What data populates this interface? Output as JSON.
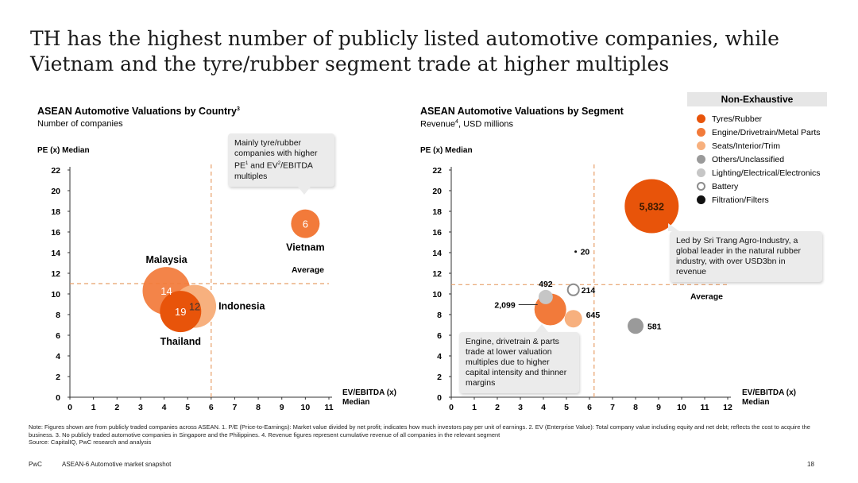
{
  "page": {
    "title": "TH has the highest number of publicly listed automotive companies, while Vietnam and the tyre/rubber segment trade at higher multiples",
    "note": "Note: Figures shown are from publicly traded companies across ASEAN. 1. P/E (Price-to-Earnings): Market value divided by net profit; indicates how much investors pay per unit of earnings. 2. EV (Enterprise Value): Total company value including equity and net debt; reflects the cost to acquire the business. 3. No publicly traded automotive companies in Singapore and the Philippines. 4. Revenue figures represent cumulative revenue of all companies in the relevant segment",
    "source": "Source: CapitalIQ, PwC research and analysis",
    "footer_brand": "PwC",
    "footer_title": "ASEAN-6 Automotive market snapshot",
    "page_number": "18"
  },
  "left": {
    "title": "ASEAN Automotive Valuations by Country",
    "title_sup": "3",
    "subtitle": "Number of companies",
    "callout": {
      "t1": "Mainly tyre/rubber companies with higher PE",
      "s1": "1",
      "t2": " and EV",
      "s2": "2",
      "t3": "/EBITDA multiples"
    }
  },
  "right": {
    "title": "ASEAN Automotive Valuations by Segment",
    "subtitle_pre": "Revenue",
    "subtitle_sup": "4",
    "subtitle_post": ", USD millions",
    "callout_top": "Led by Sri Trang Agro-Industry, a global leader in the natural rubber industry, with over USD3bn in revenue",
    "callout_bottom": "Engine, drivetrain & parts trade at lower valuation multiples due to higher capital intensity and thinner margins"
  },
  "legend": {
    "header": "Non-Exhaustive",
    "items": [
      {
        "label": "Tyres/Rubber",
        "color": "#e8540a",
        "hollow": false
      },
      {
        "label": "Engine/Drivetrain/Metal Parts",
        "color": "#f27a3a",
        "hollow": false
      },
      {
        "label": "Seats/Interior/Trim",
        "color": "#f7b07e",
        "hollow": false
      },
      {
        "label": "Others/Unclassified",
        "color": "#9a9a9a",
        "hollow": false
      },
      {
        "label": "Lighting/Electrical/Electronics",
        "color": "#c6c6c6",
        "hollow": false
      },
      {
        "label": "Battery",
        "color": "#8c8c8c",
        "hollow": true
      },
      {
        "label": "Filtration/Filters",
        "color": "#111111",
        "hollow": false
      }
    ]
  },
  "chart_data": [
    {
      "type": "scatter",
      "title": "ASEAN Automotive Valuations by Country",
      "subtitle": "Number of companies",
      "ylabel": "PE (x) Median",
      "xlabel": "EV/EBITDA (x) Median",
      "xlim": [
        0,
        11
      ],
      "ylim": [
        0,
        22
      ],
      "xticks": [
        "0",
        "1",
        "2",
        "3",
        "4",
        "5",
        "6",
        "7",
        "8",
        "9",
        "10",
        "11"
      ],
      "yticks": [
        "0",
        "2",
        "4",
        "6",
        "8",
        "10",
        "12",
        "14",
        "16",
        "18",
        "20",
        "22"
      ],
      "median_x": 6,
      "median_y": 11,
      "median_label": "Average",
      "points": [
        {
          "name": "Thailand",
          "x": 4.7,
          "y": 8.3,
          "value": 19,
          "label": "19",
          "color": "#e8540a"
        },
        {
          "name": "Malaysia",
          "x": 4.1,
          "y": 10.3,
          "value": 14,
          "label": "14",
          "color": "#f27a3a"
        },
        {
          "name": "Indonesia",
          "x": 5.3,
          "y": 8.8,
          "value": 12,
          "label": "12",
          "color": "#f7b07e"
        },
        {
          "name": "Vietnam",
          "x": 10,
          "y": 16.8,
          "value": 6,
          "label": "6",
          "color": "#f27a3a"
        }
      ]
    },
    {
      "type": "scatter",
      "title": "ASEAN Automotive Valuations by Segment",
      "subtitle": "Revenue, USD millions",
      "ylabel": "PE (x) Median",
      "xlabel": "EV/EBITDA (x) Median",
      "xlim": [
        0,
        12
      ],
      "ylim": [
        0,
        22
      ],
      "xticks": [
        "0",
        "1",
        "2",
        "3",
        "4",
        "5",
        "6",
        "7",
        "8",
        "9",
        "10",
        "11",
        "12"
      ],
      "yticks": [
        "0",
        "2",
        "4",
        "6",
        "8",
        "10",
        "12",
        "14",
        "16",
        "18",
        "20",
        "22"
      ],
      "median_x": 6.2,
      "median_y": 10.9,
      "median_label": "Average",
      "points": [
        {
          "name": "Tyres/Rubber",
          "x": 8.7,
          "y": 18.5,
          "value": 5832,
          "label": "5,832",
          "color": "#e8540a"
        },
        {
          "name": "Engine/Drivetrain/Metal Parts",
          "x": 4.3,
          "y": 8.5,
          "value": 2099,
          "label": "2,099",
          "color": "#f27a3a"
        },
        {
          "name": "Seats/Interior/Trim",
          "x": 5.3,
          "y": 7.6,
          "value": 645,
          "label": "645",
          "color": "#f7b07e"
        },
        {
          "name": "Others/Unclassified",
          "x": 8,
          "y": 6.9,
          "value": 581,
          "label": "581",
          "color": "#9a9a9a"
        },
        {
          "name": "Lighting/Electrical/Electronics",
          "x": 4.1,
          "y": 9.7,
          "value": 492,
          "label": "492",
          "color": "#c6c6c6"
        },
        {
          "name": "Battery",
          "x": 5.3,
          "y": 10.4,
          "value": 214,
          "label": "214",
          "color": "#8c8c8c"
        },
        {
          "name": "Filtration/Filters",
          "x": 5.4,
          "y": 14.1,
          "value": 20,
          "label": "20",
          "color": "#111111"
        }
      ]
    }
  ]
}
